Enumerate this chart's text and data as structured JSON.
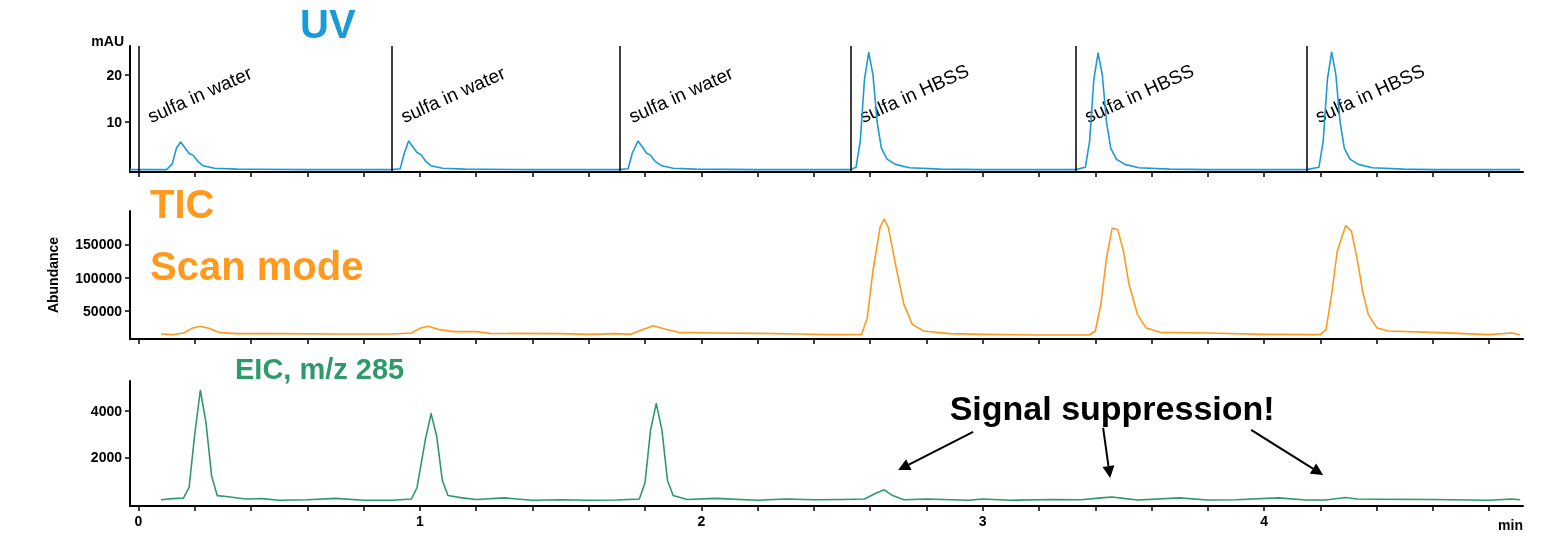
{
  "chart_data": [
    {
      "type": "line",
      "ylabel": "mAU",
      "xlim": [
        -0.03,
        4.92
      ],
      "ylim": [
        -0.5,
        26
      ],
      "yticks": [
        10,
        20
      ],
      "tick_labels": "y",
      "grid": false,
      "xticks": [
        0,
        {
          "value": 0.2,
          "label": null
        },
        {
          "value": 0.4,
          "label": null
        },
        {
          "value": 0.6,
          "label": null
        },
        {
          "value": 0.8,
          "label": null
        },
        1,
        {
          "value": 1.2,
          "label": null
        },
        {
          "value": 1.4,
          "label": null
        },
        {
          "value": 1.6,
          "label": null
        },
        {
          "value": 1.8,
          "label": null
        },
        2,
        {
          "value": 2.2,
          "label": null
        },
        {
          "value": 2.4,
          "label": null
        },
        {
          "value": 2.6,
          "label": null
        },
        {
          "value": 2.8,
          "label": null
        },
        3,
        {
          "value": 3.2,
          "label": null
        },
        {
          "value": 3.4,
          "label": null
        },
        {
          "value": 3.6,
          "label": null
        },
        {
          "value": 3.8,
          "label": null
        },
        4,
        {
          "value": 4.2,
          "label": null
        },
        {
          "value": 4.4,
          "label": null
        },
        {
          "value": 4.6,
          "label": null
        },
        {
          "value": 4.8,
          "label": null
        }
      ],
      "ref_lines": [
        {
          "axis": "x",
          "value": 0,
          "label": "sulfa in water"
        },
        {
          "axis": "x",
          "value": 0.9,
          "label": "sulfa in water"
        },
        {
          "axis": "x",
          "value": 1.71,
          "label": "sulfa in water"
        },
        {
          "axis": "x",
          "value": 2.53,
          "label": "sulfa in HBSS"
        },
        {
          "axis": "x",
          "value": 3.33,
          "label": "sulfa in HBSS"
        },
        {
          "axis": "x",
          "value": 4.15,
          "label": "sulfa in HBSS"
        }
      ],
      "series": [
        {
          "name": "UV",
          "color": "#1a9bd7",
          "x": [
            -0.03,
            0.1,
            0.12,
            0.135,
            0.15,
            0.165,
            0.18,
            0.195,
            0.21,
            0.23,
            0.27,
            0.35,
            0.6,
            0.9,
            0.93,
            0.945,
            0.96,
            0.975,
            0.99,
            1.005,
            1.02,
            1.04,
            1.08,
            1.16,
            1.4,
            1.71,
            1.74,
            1.755,
            1.775,
            1.79,
            1.805,
            1.82,
            1.835,
            1.86,
            1.9,
            1.98,
            2.2,
            2.53,
            2.55,
            2.565,
            2.58,
            2.595,
            2.61,
            2.625,
            2.64,
            2.66,
            2.69,
            2.74,
            2.85,
            3.0,
            3.33,
            3.365,
            3.38,
            3.395,
            3.41,
            3.425,
            3.44,
            3.455,
            3.475,
            3.505,
            3.555,
            3.665,
            3.8,
            4.15,
            4.195,
            4.21,
            4.225,
            4.24,
            4.255,
            4.27,
            4.285,
            4.305,
            4.335,
            4.385,
            4.495,
            4.6,
            4.91
          ],
          "values": [
            0,
            0,
            1.2,
            4.5,
            5.8,
            4.6,
            3.4,
            3,
            1.8,
            0.8,
            0.3,
            0.1,
            0,
            0,
            0.2,
            3.5,
            6,
            4.8,
            3.6,
            3.1,
            1.8,
            0.8,
            0.3,
            0.1,
            0,
            0,
            0.2,
            3.5,
            6,
            4.8,
            3.5,
            3,
            1.8,
            0.8,
            0.3,
            0.1,
            0,
            0,
            0.5,
            6,
            19,
            24.6,
            20,
            10,
            4.5,
            2.2,
            1.1,
            0.4,
            0.1,
            0,
            0,
            0.5,
            6,
            19,
            24.5,
            20,
            10,
            4.5,
            2.2,
            1.1,
            0.4,
            0.1,
            0,
            0,
            0.5,
            6,
            19,
            24.7,
            20,
            10,
            4.5,
            2.2,
            1.1,
            0.4,
            0.1,
            0,
            0
          ]
        }
      ]
    },
    {
      "type": "line",
      "ylabel": "Abundance",
      "xlim": [
        -0.03,
        4.92
      ],
      "ylim": [
        8000,
        200000
      ],
      "yticks": [
        50000,
        100000,
        150000
      ],
      "tick_labels": "y",
      "grid": false,
      "xticks": [
        0,
        {
          "value": 0.2,
          "label": null
        },
        {
          "value": 0.4,
          "label": null
        },
        {
          "value": 0.6,
          "label": null
        },
        {
          "value": 0.8,
          "label": null
        },
        1,
        {
          "value": 1.2,
          "label": null
        },
        {
          "value": 1.4,
          "label": null
        },
        {
          "value": 1.6,
          "label": null
        },
        {
          "value": 1.8,
          "label": null
        },
        2,
        {
          "value": 2.2,
          "label": null
        },
        {
          "value": 2.4,
          "label": null
        },
        {
          "value": 2.6,
          "label": null
        },
        {
          "value": 2.8,
          "label": null
        },
        3,
        {
          "value": 3.2,
          "label": null
        },
        {
          "value": 3.4,
          "label": null
        },
        {
          "value": 3.6,
          "label": null
        },
        {
          "value": 3.8,
          "label": null
        },
        4,
        {
          "value": 4.2,
          "label": null
        },
        {
          "value": 4.4,
          "label": null
        },
        {
          "value": 4.6,
          "label": null
        },
        {
          "value": 4.8,
          "label": null
        }
      ],
      "annotations": [
        "Scan mode"
      ],
      "series": [
        {
          "name": "TIC",
          "color": "#ff9a1f",
          "x": [
            0.08,
            0.12,
            0.16,
            0.19,
            0.22,
            0.25,
            0.29,
            0.35,
            0.5,
            0.7,
            0.9,
            0.97,
            1.0,
            1.03,
            1.07,
            1.12,
            1.2,
            1.25,
            1.5,
            1.6,
            1.7,
            1.75,
            1.79,
            1.83,
            1.87,
            1.92,
            2.05,
            2.2,
            2.35,
            2.45,
            2.52,
            2.57,
            2.59,
            2.61,
            2.635,
            2.65,
            2.665,
            2.69,
            2.72,
            2.75,
            2.79,
            2.88,
            3.0,
            3.2,
            3.38,
            3.4,
            3.42,
            3.44,
            3.46,
            3.48,
            3.5,
            3.52,
            3.55,
            3.58,
            3.63,
            3.8,
            4.0,
            4.2,
            4.22,
            4.24,
            4.26,
            4.29,
            4.31,
            4.33,
            4.35,
            4.37,
            4.4,
            4.44,
            4.6,
            4.8,
            4.88,
            4.91
          ],
          "values": [
            15500,
            14500,
            17000,
            24000,
            27000,
            24000,
            17500,
            16000,
            16000,
            15500,
            15500,
            17000,
            24000,
            27000,
            22000,
            19000,
            19000,
            16500,
            16000,
            15000,
            16000,
            15000,
            22000,
            28000,
            23000,
            18000,
            17000,
            16500,
            15500,
            14500,
            14500,
            15000,
            40000,
            110000,
            175000,
            188000,
            175000,
            120000,
            60000,
            30000,
            20000,
            16000,
            15000,
            14000,
            14000,
            20000,
            60000,
            130000,
            174000,
            172000,
            140000,
            90000,
            45000,
            25000,
            18000,
            17000,
            15000,
            14500,
            22000,
            75000,
            140000,
            178000,
            170000,
            130000,
            80000,
            45000,
            25000,
            20000,
            18000,
            14500,
            17000,
            14500
          ]
        }
      ]
    },
    {
      "type": "line",
      "xlabel": "min",
      "xlim": [
        -0.03,
        4.92
      ],
      "ylim": [
        -100,
        5300
      ],
      "yticks": [
        2000,
        4000
      ],
      "grid": false,
      "xticks": [
        0,
        {
          "value": 0.2,
          "label": null
        },
        {
          "value": 0.4,
          "label": null
        },
        {
          "value": 0.6,
          "label": null
        },
        {
          "value": 0.8,
          "label": null
        },
        1,
        {
          "value": 1.2,
          "label": null
        },
        {
          "value": 1.4,
          "label": null
        },
        {
          "value": 1.6,
          "label": null
        },
        {
          "value": 1.8,
          "label": null
        },
        2,
        {
          "value": 2.2,
          "label": null
        },
        {
          "value": 2.4,
          "label": null
        },
        {
          "value": 2.6,
          "label": null
        },
        {
          "value": 2.8,
          "label": null
        },
        3,
        {
          "value": 3.2,
          "label": null
        },
        {
          "value": 3.4,
          "label": null
        },
        {
          "value": 3.6,
          "label": null
        },
        {
          "value": 3.8,
          "label": null
        },
        4,
        {
          "value": 4.2,
          "label": null
        },
        {
          "value": 4.4,
          "label": null
        },
        {
          "value": 4.6,
          "label": null
        },
        {
          "value": 4.8,
          "label": null
        }
      ],
      "annotations": [
        {
          "text": "Signal suppression!",
          "x": 3.46,
          "y": 290
        }
      ],
      "series": [
        {
          "name": "EIC, m/z 285",
          "color": "#2e9a6a",
          "x": [
            0.08,
            0.12,
            0.16,
            0.18,
            0.2,
            0.22,
            0.24,
            0.26,
            0.28,
            0.32,
            0.38,
            0.44,
            0.5,
            0.6,
            0.7,
            0.8,
            0.9,
            0.97,
            0.99,
            1.02,
            1.04,
            1.06,
            1.08,
            1.1,
            1.15,
            1.2,
            1.3,
            1.4,
            1.5,
            1.6,
            1.7,
            1.78,
            1.8,
            1.82,
            1.84,
            1.86,
            1.88,
            1.9,
            1.95,
            2.05,
            2.2,
            2.3,
            2.4,
            2.5,
            2.58,
            2.62,
            2.65,
            2.68,
            2.72,
            2.8,
            2.95,
            3.0,
            3.1,
            3.25,
            3.35,
            3.42,
            3.46,
            3.5,
            3.55,
            3.7,
            3.8,
            3.9,
            4.05,
            4.15,
            4.22,
            4.29,
            4.33,
            4.4,
            4.6,
            4.8,
            4.88,
            4.91
          ],
          "values": [
            170,
            220,
            240,
            700,
            3000,
            4900,
            3500,
            1200,
            350,
            300,
            200,
            220,
            150,
            170,
            230,
            150,
            150,
            200,
            700,
            2800,
            3890,
            2900,
            1000,
            350,
            250,
            180,
            250,
            150,
            170,
            150,
            160,
            200,
            900,
            3200,
            4320,
            3200,
            1000,
            350,
            180,
            230,
            150,
            200,
            170,
            180,
            200,
            450,
            600,
            350,
            170,
            200,
            150,
            200,
            150,
            180,
            170,
            250,
            290,
            230,
            160,
            250,
            160,
            170,
            250,
            160,
            160,
            270,
            200,
            190,
            180,
            150,
            200,
            170
          ]
        }
      ]
    }
  ]
}
